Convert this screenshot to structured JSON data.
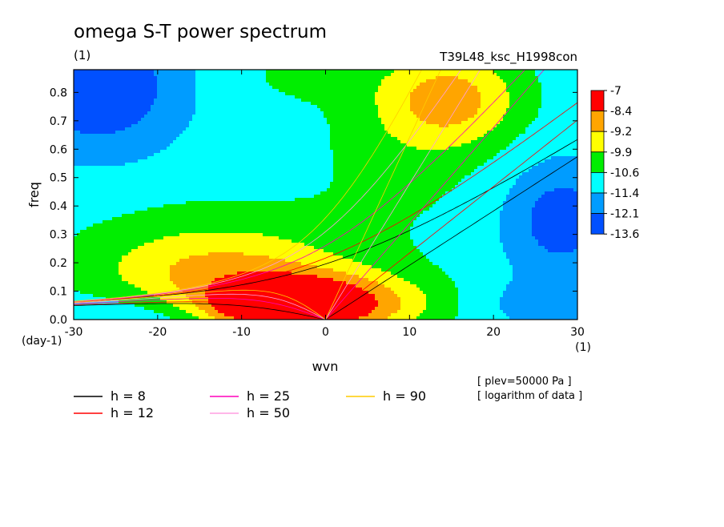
{
  "chart_data": {
    "type": "heatmap",
    "title": "omega S-T power spectrum",
    "subtitle_left": "(1)",
    "subtitle_right": "T39L48_ksc_H1998con",
    "xlabel": "wvn",
    "ylabel": "freq",
    "x_unit": "(1)",
    "y_unit": "(day-1)",
    "xlim": [
      -30,
      30
    ],
    "ylim": [
      0,
      0.88
    ],
    "x_ticks": [
      -30,
      -20,
      -10,
      0,
      10,
      20,
      30
    ],
    "x_tick_labels": [
      "-30",
      "-20",
      "-10",
      "0",
      "10",
      "20",
      "30"
    ],
    "y_ticks": [
      0,
      0.1,
      0.2,
      0.3,
      0.4,
      0.5,
      0.6,
      0.7,
      0.8
    ],
    "y_tick_labels": [
      "0.0",
      "0.1",
      "0.2",
      "0.3",
      "0.4",
      "0.5",
      "0.6",
      "0.7",
      "0.8"
    ],
    "colorbar": {
      "labels": [
        "-7",
        "-8.4",
        "-9.2",
        "-9.9",
        "-10.6",
        "-11.4",
        "-12.1",
        "-13.6"
      ],
      "colors": [
        "#ff0000",
        "#ffa500",
        "#ffff00",
        "#00ee00",
        "#00ffff",
        "#009cff",
        "#0050ff"
      ]
    },
    "field_model": {
      "background": -11.0,
      "blobs": [
        {
          "x": -5,
          "y": 0.05,
          "sx": 6,
          "sy": 0.06,
          "a": 4.5
        },
        {
          "x": -12,
          "y": 0.15,
          "sx": 11,
          "sy": 0.1,
          "a": 1.8
        },
        {
          "x": 5,
          "y": 0.05,
          "sx": 7,
          "sy": 0.08,
          "a": 1.5
        },
        {
          "x": -14,
          "y": 0.3,
          "sx": 12,
          "sy": 0.12,
          "a": 0.6
        },
        {
          "x": 15,
          "y": 0.78,
          "sx": 6,
          "sy": 0.12,
          "a": 1.9
        },
        {
          "x": 9,
          "y": 0.6,
          "sx": 8,
          "sy": 0.22,
          "a": 0.6
        },
        {
          "x": -3,
          "y": 0.86,
          "sx": 6,
          "sy": 0.07,
          "a": 0.5
        },
        {
          "x": -27,
          "y": 0.82,
          "sx": 7,
          "sy": 0.17,
          "a": -1.8
        },
        {
          "x": -22,
          "y": 0.0,
          "sx": 8,
          "sy": 0.07,
          "a": -0.5
        },
        {
          "x": 28,
          "y": 0.35,
          "sx": 5,
          "sy": 0.15,
          "a": -1.5
        },
        {
          "x": 26,
          "y": 0.05,
          "sx": 5,
          "sy": 0.06,
          "a": -0.8
        }
      ]
    },
    "series": [
      {
        "name": "h = 8",
        "h": 8,
        "color": "#000000"
      },
      {
        "name": "h = 12",
        "h": 12,
        "color": "#ff0000"
      },
      {
        "name": "h = 25",
        "h": 25,
        "color": "#ff00bb"
      },
      {
        "name": "h = 50",
        "h": 50,
        "color": "#ff9ee0"
      },
      {
        "name": "h = 90",
        "h": 90,
        "color": "#ffcc00"
      }
    ],
    "notes": [
      "[ plev=50000 Pa ]",
      "[ logarithm of data ]"
    ]
  }
}
